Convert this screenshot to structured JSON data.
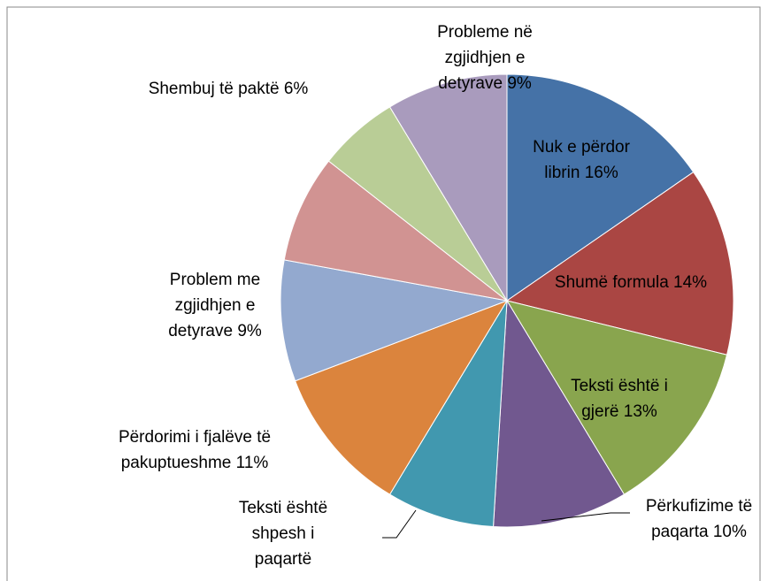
{
  "chart_data": {
    "type": "pie",
    "categories": [
      "Nuk e përdor librin",
      "Shumë formula",
      "Teksti është i gjerë",
      "Përkufizime të paqarta",
      "Teksti është shpesh i paqartë",
      "Përdorimi i fjalëve të pakuptueshme",
      "Problem me zgjidhjen e detyrave",
      null,
      "Shembuj të paktë",
      "Probleme në zgjidhjen e detyrave"
    ],
    "values": [
      16,
      14,
      13,
      10,
      8,
      11,
      9,
      8,
      6,
      9
    ],
    "value_labels": [
      "16%",
      "14%",
      "13%",
      "10%",
      null,
      "11%",
      "9%",
      null,
      "6%",
      "9%"
    ],
    "colors": [
      "#4572a7",
      "#aa4643",
      "#89a54e",
      "#71588f",
      "#4198af",
      "#db843d",
      "#93a9cf",
      "#d19392",
      "#b9cd96",
      "#a99bbd"
    ]
  }
}
